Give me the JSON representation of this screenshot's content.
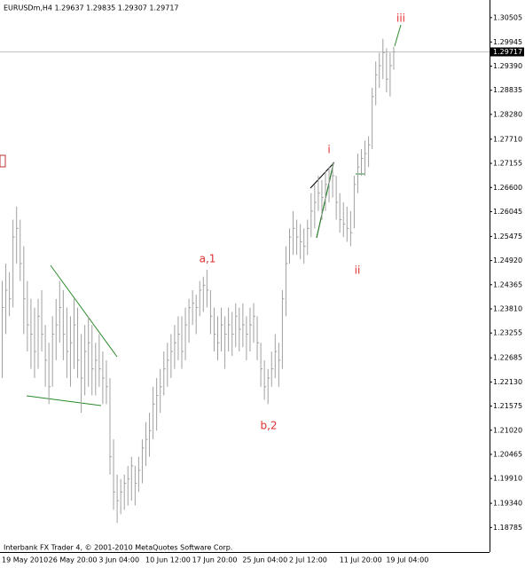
{
  "chart_data": {
    "type": "hlc",
    "title": "EURUSDm,H4 1.29637 1.29835 1.29307 1.29717",
    "footer": "Interbank FX Trader 4, © 2001-2010 MetaQuotes Software Corp.",
    "color": "#a0a0a0",
    "current_price": 1.29717,
    "annotations": [
      "a,1",
      "b,2",
      "i",
      "ii",
      "iii"
    ],
    "categories": [
      "19 May 2010",
      null,
      null,
      null,
      null,
      null,
      null,
      null,
      null,
      null,
      null,
      null,
      null,
      "26 May 20:00",
      null,
      null,
      null,
      null,
      null,
      null,
      null,
      null,
      null,
      null,
      null,
      null,
      null,
      "3 Jun 04:00",
      null,
      null,
      null,
      null,
      null,
      null,
      null,
      null,
      null,
      null,
      null,
      null,
      "10 Jun 12:00",
      null,
      null,
      null,
      null,
      null,
      null,
      null,
      null,
      null,
      null,
      null,
      null,
      "17 Jun 20:00",
      null,
      null,
      null,
      null,
      null,
      null,
      null,
      null,
      null,
      null,
      null,
      null,
      null,
      "25 Jun 04:00",
      null,
      null,
      null,
      null,
      null,
      null,
      null,
      null,
      null,
      null,
      null,
      null,
      "2 Jul 12:00",
      null,
      null,
      null,
      null,
      null,
      null,
      null,
      null,
      null,
      null,
      null,
      null,
      null,
      "11 Jul 20:00",
      null,
      null,
      null,
      null,
      null,
      null,
      null,
      null,
      null,
      null,
      null,
      null,
      "19 Jul 04:00",
      null,
      null
    ],
    "high": [
      1.2445,
      1.2485,
      1.2465,
      1.2586,
      1.2616,
      1.2586,
      1.2525,
      1.2445,
      1.2404,
      1.2384,
      1.2404,
      1.2424,
      1.2344,
      1.2303,
      1.2364,
      1.2404,
      1.2445,
      1.2424,
      1.2384,
      1.2364,
      1.2404,
      1.2384,
      1.2323,
      1.2344,
      1.2364,
      1.2344,
      1.2303,
      1.2323,
      1.2283,
      1.2263,
      1.2222,
      1.2081,
      1.2,
      1.199,
      1.2,
      1.202,
      1.2041,
      1.202,
      1.2041,
      1.2081,
      1.2121,
      1.2142,
      1.2202,
      1.2222,
      1.2243,
      1.2283,
      1.2303,
      1.2323,
      1.2344,
      1.2364,
      1.2364,
      1.2384,
      1.2404,
      1.2424,
      1.2414,
      1.2445,
      1.2455,
      1.2471,
      1.2424,
      1.2384,
      1.2364,
      1.2384,
      1.2364,
      1.2384,
      1.2374,
      1.2394,
      1.2384,
      1.2394,
      1.2364,
      1.2384,
      1.2394,
      1.2364,
      1.2303,
      1.2263,
      1.2243,
      1.2283,
      1.2323,
      1.2303,
      1.2424,
      1.2525,
      1.2566,
      1.2606,
      1.2586,
      1.2576,
      1.2566,
      1.2586,
      1.2647,
      1.2667,
      1.2687,
      1.2677,
      1.2697,
      1.2707,
      1.2717,
      1.2687,
      1.2647,
      1.2626,
      1.2616,
      1.2606,
      1.2687,
      1.2738,
      1.2748,
      1.2768,
      1.2778,
      1.2889,
      1.295,
      1.297,
      1.3002,
      1.298,
      1.297,
      1.29835
    ],
    "low": [
      1.2222,
      1.2323,
      1.2364,
      1.2384,
      1.2485,
      1.2445,
      1.2323,
      1.2283,
      1.2243,
      1.2222,
      1.2243,
      1.2283,
      1.2202,
      1.2162,
      1.2202,
      1.2263,
      1.2303,
      1.2263,
      1.2222,
      1.2202,
      1.2243,
      1.2222,
      1.2142,
      1.2182,
      1.2202,
      1.2182,
      1.2182,
      1.2202,
      1.2162,
      1.2162,
      1.2,
      1.1919,
      1.1889,
      1.1909,
      1.1919,
      1.1929,
      1.194,
      1.1929,
      1.196,
      1.198,
      1.202,
      1.2041,
      1.2081,
      1.2101,
      1.2142,
      1.2182,
      1.2202,
      1.2222,
      1.2243,
      1.2263,
      1.2243,
      1.2263,
      1.2303,
      1.2344,
      1.2323,
      1.2364,
      1.2374,
      1.2384,
      1.2323,
      1.2283,
      1.2263,
      1.2283,
      1.2243,
      1.2283,
      1.2273,
      1.2293,
      1.2283,
      1.2293,
      1.2263,
      1.2283,
      1.2303,
      1.2263,
      1.2202,
      1.2172,
      1.2162,
      1.2202,
      1.2222,
      1.2202,
      1.2243,
      1.2364,
      1.2485,
      1.2505,
      1.2505,
      1.2495,
      1.2485,
      1.2505,
      1.2546,
      1.2566,
      1.2606,
      1.2586,
      1.2606,
      1.2626,
      1.2637,
      1.2586,
      1.2556,
      1.2546,
      1.2535,
      1.2525,
      1.2566,
      1.2647,
      1.2687,
      1.2687,
      1.2707,
      1.2748,
      1.2849,
      1.2889,
      1.2909,
      1.2879,
      1.2869,
      1.29307
    ],
    "close": [
      1.2384,
      1.2424,
      1.2404,
      1.2546,
      1.2566,
      1.2485,
      1.2404,
      1.2344,
      1.2323,
      1.2283,
      1.2364,
      1.2323,
      1.2263,
      1.2202,
      1.2323,
      1.2344,
      1.2384,
      1.2323,
      1.2283,
      1.2303,
      1.2344,
      1.2263,
      1.2222,
      1.2283,
      1.2303,
      1.2243,
      1.2263,
      1.2243,
      1.2222,
      1.2202,
      1.2041,
      1.196,
      1.194,
      1.196,
      1.198,
      1.199,
      1.202,
      1.198,
      1.201,
      1.2061,
      1.2081,
      1.2101,
      1.2162,
      1.2182,
      1.2202,
      1.2243,
      1.2263,
      1.2283,
      1.2303,
      1.2323,
      1.2283,
      1.2344,
      1.2384,
      1.2394,
      1.2384,
      1.2424,
      1.2435,
      1.2424,
      1.2364,
      1.2323,
      1.2303,
      1.2344,
      1.2323,
      1.2344,
      1.2323,
      1.2364,
      1.2334,
      1.2344,
      1.2323,
      1.2344,
      1.2364,
      1.2303,
      1.2243,
      1.2202,
      1.2222,
      1.2243,
      1.2283,
      1.2263,
      1.2404,
      1.2485,
      1.2546,
      1.2566,
      1.2546,
      1.2535,
      1.2525,
      1.2566,
      1.2606,
      1.2626,
      1.2647,
      1.2637,
      1.2667,
      1.2677,
      1.2687,
      1.2626,
      1.2586,
      1.2576,
      1.2566,
      1.2556,
      1.2667,
      1.2707,
      1.2727,
      1.2738,
      1.2758,
      1.2869,
      1.2919,
      1.294,
      1.297,
      1.2909,
      1.294,
      1.29717
    ],
    "ylim": [
      1.1822,
      1.3091
    ],
    "yticks": [
      1.30505,
      1.29945,
      {
        "value": 1.2939,
        "label": "1.29390"
      },
      1.28835,
      {
        "value": 1.2828,
        "label": "1.28280"
      },
      {
        "value": 1.2771,
        "label": "1.27710"
      },
      1.27155,
      {
        "value": 1.266,
        "label": "1.26600"
      },
      1.26045,
      1.25475,
      {
        "value": 1.2492,
        "label": "1.24920"
      },
      1.24365,
      {
        "value": 1.2381,
        "label": "1.23810"
      },
      1.23255,
      1.22685,
      {
        "value": 1.2213,
        "label": "1.22130"
      },
      1.21575,
      {
        "value": 1.2102,
        "label": "1.21020"
      },
      1.20465,
      {
        "value": 1.1991,
        "label": "1.19910"
      },
      {
        "value": 1.1934,
        "label": "1.19340"
      },
      1.18785
    ]
  }
}
